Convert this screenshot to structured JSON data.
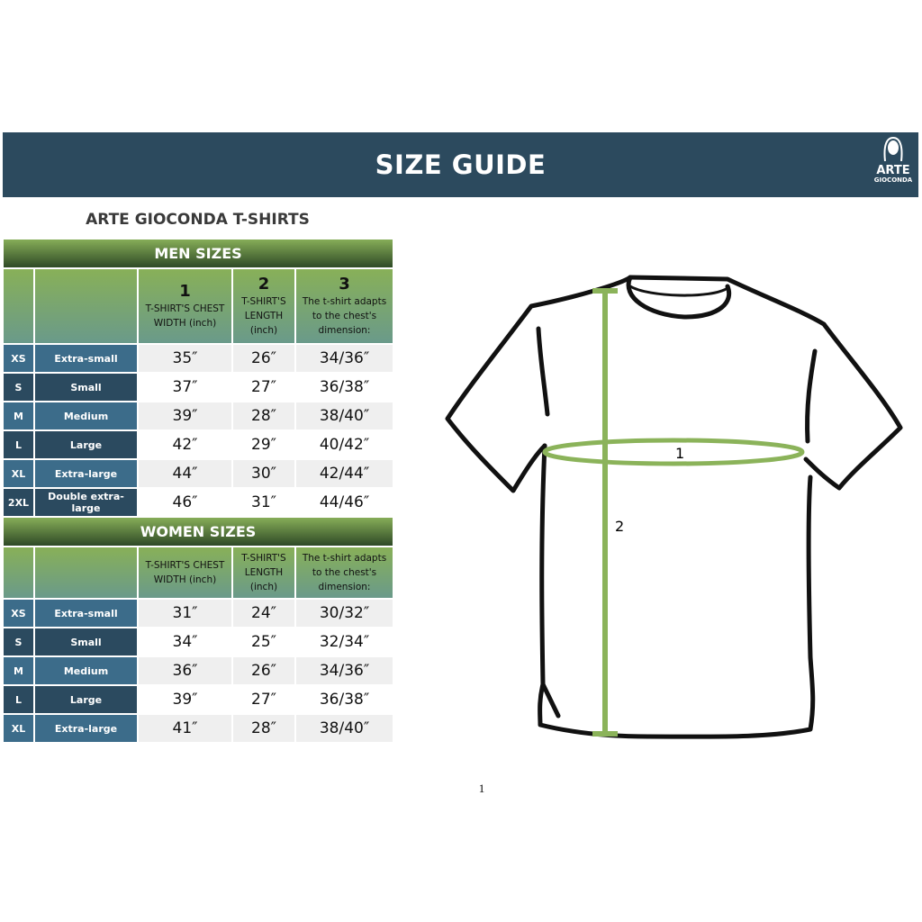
{
  "header": {
    "title": "SIZE GUIDE",
    "logo_text": "ARTE GIOCONDA"
  },
  "subtitle": "ARTE GIOCONDA T-SHIRTS",
  "men": {
    "title": "MEN SIZES",
    "columns": [
      {
        "num": "1",
        "label": "T-SHIRT'S CHEST WIDTH (inch)"
      },
      {
        "num": "2",
        "label": "T-SHIRT'S LENGTH (inch)"
      },
      {
        "num": "3",
        "label": "The t-shirt adapts to the chest's dimension:"
      }
    ],
    "rows": [
      [
        "XS",
        "Extra-small",
        "35″",
        "26″",
        "34/36″"
      ],
      [
        "S",
        "Small",
        "37″",
        "27″",
        "36/38″"
      ],
      [
        "M",
        "Medium",
        "39″",
        "28″",
        "38/40″"
      ],
      [
        "L",
        "Large",
        "42″",
        "29″",
        "40/42″"
      ],
      [
        "XL",
        "Extra-large",
        "44″",
        "30″",
        "42/44″"
      ],
      [
        "2XL",
        "Double extra-large",
        "46″",
        "31″",
        "44/46″"
      ]
    ]
  },
  "women": {
    "title": "WOMEN SIZES",
    "columns": [
      {
        "label": "T-SHIRT'S CHEST WIDTH (inch)"
      },
      {
        "label": "T-SHIRT'S LENGTH (inch)"
      },
      {
        "label": "The t-shirt adapts to the chest's dimension:"
      }
    ],
    "rows": [
      [
        "XS",
        "Extra-small",
        "31″",
        "24″",
        "30/32″"
      ],
      [
        "S",
        "Small",
        "34″",
        "25″",
        "32/34″"
      ],
      [
        "M",
        "Medium",
        "36″",
        "26″",
        "34/36″"
      ],
      [
        "L",
        "Large",
        "39″",
        "27″",
        "36/38″"
      ],
      [
        "XL",
        "Extra-large",
        "41″",
        "28″",
        "38/40″"
      ]
    ]
  },
  "diagram": {
    "label_1": "1",
    "label_2": "2",
    "accent": "#8bb35a"
  },
  "page_number": "1"
}
